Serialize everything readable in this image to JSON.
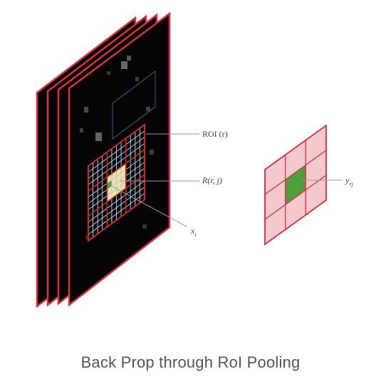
{
  "caption": "Back Prop through RoI Pooling",
  "labels": {
    "roi": "ROI (r)",
    "region": "R(r, j)",
    "input_cell": "x",
    "input_cell_sub": "i",
    "output_cell": "y",
    "output_cell_sub": "rj"
  },
  "colors": {
    "frame_border": "#d9303a",
    "frame_fill": "#050505",
    "roi_grid_line": "#b7c7e8",
    "roi_border": "#c92a2a",
    "roi_rect": "#4a5a8a",
    "region_fill": "#f3e3a0",
    "highlight_green": "#4f9d3c",
    "output_fill": "#f4c9cd",
    "output_border": "#d9303a",
    "leader_line": "#9a9a9a"
  }
}
